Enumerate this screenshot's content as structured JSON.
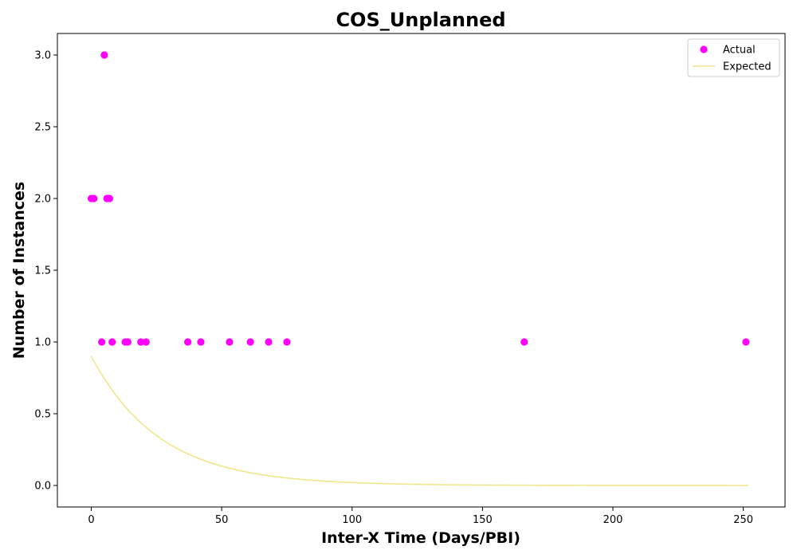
{
  "chart_data": {
    "type": "scatter",
    "title": "COS_Unplanned",
    "xlabel": "Inter-X Time (Days/PBI)",
    "ylabel": "Number of Instances",
    "xlim": [
      -13,
      266
    ],
    "ylim": [
      -0.15,
      3.15
    ],
    "xticks": [
      0,
      50,
      100,
      150,
      200,
      250
    ],
    "yticks": [
      0.0,
      0.5,
      1.0,
      1.5,
      2.0,
      2.5,
      3.0
    ],
    "xtick_labels": [
      "0",
      "50",
      "100",
      "150",
      "200",
      "250"
    ],
    "ytick_labels": [
      "0.0",
      "0.5",
      "1.0",
      "1.5",
      "2.0",
      "2.5",
      "3.0"
    ],
    "grid": false,
    "legend_position": "top-right",
    "series": [
      {
        "name": "Actual",
        "kind": "scatter",
        "color": "#ff00ff",
        "points": [
          [
            0,
            2
          ],
          [
            1,
            2
          ],
          [
            4,
            1
          ],
          [
            5,
            3
          ],
          [
            6,
            2
          ],
          [
            7,
            2
          ],
          [
            8,
            1
          ],
          [
            13,
            1
          ],
          [
            14,
            1
          ],
          [
            19,
            1
          ],
          [
            21,
            1
          ],
          [
            37,
            1
          ],
          [
            42,
            1
          ],
          [
            53,
            1
          ],
          [
            61,
            1
          ],
          [
            68,
            1
          ],
          [
            75,
            1
          ],
          [
            166,
            1
          ],
          [
            251,
            1
          ]
        ]
      },
      {
        "name": "Expected",
        "kind": "line",
        "color": "#f0e68c",
        "function": "exponential_decay",
        "amplitude": 0.9,
        "rate": 0.038,
        "x_range": [
          0,
          252
        ]
      }
    ]
  }
}
